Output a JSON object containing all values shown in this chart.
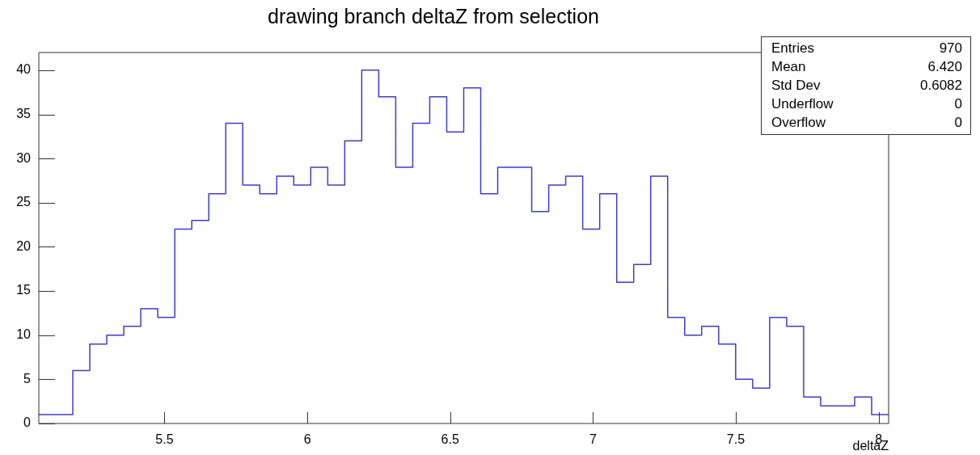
{
  "chart_data": {
    "type": "histogram",
    "title": "drawing branch deltaZ from selection",
    "xlabel": "deltaZ",
    "bins": [
      5.06,
      5.1195,
      5.179,
      5.2385,
      5.298,
      5.3575,
      5.417,
      5.4765,
      5.536,
      5.5955,
      5.655,
      5.7145,
      5.774,
      5.8335,
      5.893,
      5.9525,
      6.012,
      6.0715,
      6.131,
      6.1905,
      6.25,
      6.3095,
      6.369,
      6.4285,
      6.488,
      6.5475,
      6.607,
      6.6665,
      6.726,
      6.7855,
      6.845,
      6.9045,
      6.964,
      7.0235,
      7.083,
      7.1425,
      7.202,
      7.2615,
      7.321,
      7.3805,
      7.44,
      7.4995,
      7.559,
      7.6185,
      7.678,
      7.7375,
      7.797,
      7.8565,
      7.916,
      7.9755,
      8.035
    ],
    "values": [
      1,
      1,
      6,
      9,
      10,
      11,
      13,
      12,
      22,
      23,
      26,
      34,
      27,
      26,
      28,
      27,
      29,
      27,
      32,
      40,
      37,
      29,
      34,
      37,
      33,
      38,
      26,
      29,
      29,
      24,
      27,
      28,
      22,
      26,
      16,
      18,
      28,
      12,
      10,
      11,
      9,
      5,
      4,
      12,
      11,
      3,
      2,
      2,
      3,
      1
    ],
    "color": "#3d3dd0",
    "xlim": [
      5.06,
      8.035
    ],
    "xticks": [
      5.5,
      6,
      6.5,
      7,
      7.5,
      8
    ],
    "ylim": [
      0,
      42
    ],
    "yticks": [
      0,
      5,
      10,
      15,
      20,
      25,
      30,
      35,
      40
    ],
    "annotations": [
      "Entries",
      "970",
      "Mean",
      "6.420",
      "Std Dev",
      "0.6082",
      "Underflow",
      "0",
      "Overflow",
      "0"
    ]
  }
}
